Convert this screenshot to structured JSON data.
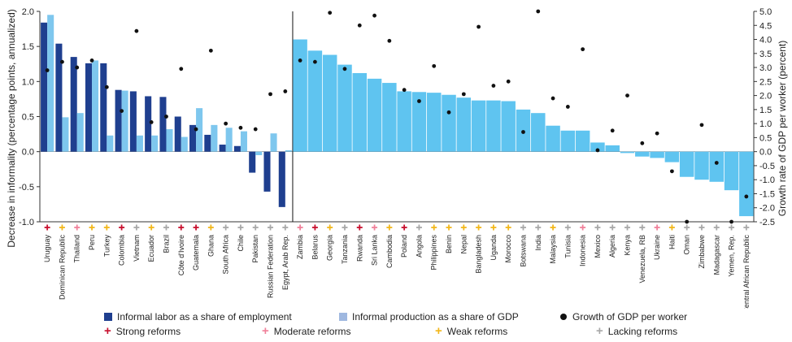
{
  "chart_data": {
    "type": "bar",
    "ylabel": "Decrease in informality (percentage points, annualized)",
    "y2label": "Growth rate of GDP per worker (percent)",
    "ylim": [
      -1.0,
      2.0
    ],
    "yticks": [
      "2.0",
      "1.5",
      "1.0",
      "0.5",
      "0.0",
      "-0.5",
      "-1.0"
    ],
    "y2lim": [
      -2.5,
      5.0
    ],
    "y2ticks": [
      "5.0",
      "4.5",
      "4.0",
      "3.5",
      "3.0",
      "2.5",
      "2.0",
      "1.5",
      "1.0",
      "0.5",
      "0.0",
      "-0.5",
      "-1.0",
      "-1.5",
      "-2.0",
      "-2.5"
    ],
    "group1": {
      "categories": [
        "Uruguay",
        "Dominican Republic",
        "Thailand",
        "Peru",
        "Turkey",
        "Colombia",
        "Vietnam",
        "Ecuador",
        "Brazil",
        "Côte d'Ivoire",
        "Guatemala",
        "Ghana",
        "South Africa",
        "Chile",
        "Pakistan",
        "Russian Federation",
        "Egypt, Arab Rep."
      ],
      "labor": [
        1.84,
        1.54,
        1.35,
        1.26,
        1.26,
        0.88,
        0.86,
        0.79,
        0.78,
        0.5,
        0.38,
        0.24,
        0.1,
        0.08,
        -0.3,
        -0.57,
        -0.79
      ],
      "production": [
        1.95,
        0.49,
        0.55,
        1.3,
        0.23,
        0.87,
        0.23,
        0.23,
        0.32,
        0.21,
        0.62,
        0.38,
        0.34,
        0.29,
        -0.05,
        0.26,
        0.02
      ],
      "growth": [
        2.9,
        3.2,
        3.0,
        3.25,
        2.3,
        1.45,
        4.3,
        1.05,
        1.25,
        2.95,
        0.8,
        3.6,
        1.0,
        0.85,
        0.8,
        2.05,
        2.15
      ],
      "reforms": [
        "strong",
        "weak",
        "moderate",
        "weak",
        "weak",
        "strong",
        "lacking",
        "weak",
        "lacking",
        "strong",
        "strong",
        "weak",
        "lacking",
        "lacking",
        "lacking",
        "lacking",
        "lacking"
      ]
    },
    "group2": {
      "categories": [
        "Zambia",
        "Belarus",
        "Georgia",
        "Tanzania",
        "Rwanda",
        "Sri Lanka",
        "Cambodia",
        "Poland",
        "Angola",
        "Philippines",
        "Benin",
        "Nepal",
        "Bangladesh",
        "Uganda",
        "Morocco",
        "Botswana",
        "India",
        "Malaysia",
        "Tunisia",
        "Indonesia",
        "Mexico",
        "Algeria",
        "Kenya",
        "Venezuela, RB",
        "Ukraine",
        "Haiti",
        "Oman",
        "Zimbabwe",
        "Madagascar",
        "Yemen, Rep.",
        "Central African Republic"
      ],
      "production": [
        1.6,
        1.44,
        1.38,
        1.24,
        1.12,
        1.04,
        0.98,
        0.86,
        0.85,
        0.84,
        0.81,
        0.77,
        0.73,
        0.73,
        0.72,
        0.6,
        0.55,
        0.37,
        0.3,
        0.3,
        0.13,
        0.09,
        -0.02,
        -0.07,
        -0.09,
        -0.15,
        -0.36,
        -0.4,
        -0.43,
        -0.55,
        -0.92
      ],
      "growth": [
        3.25,
        3.2,
        4.95,
        2.95,
        4.5,
        4.85,
        3.95,
        2.2,
        1.8,
        3.05,
        1.4,
        2.05,
        4.45,
        2.35,
        2.5,
        0.7,
        5.0,
        1.9,
        1.6,
        3.65,
        0.05,
        0.75,
        2.0,
        0.3,
        0.65,
        -0.7,
        -2.5,
        0.95,
        -0.4,
        -2.5,
        -1.6
      ],
      "reforms": [
        "moderate",
        "strong",
        "weak",
        "lacking",
        "strong",
        "moderate",
        "weak",
        "strong",
        "lacking",
        "weak",
        "weak",
        "weak",
        "weak",
        "weak",
        "weak",
        "lacking",
        "lacking",
        "weak",
        "lacking",
        "moderate",
        "lacking",
        "lacking",
        "lacking",
        "lacking",
        "moderate",
        "weak",
        "lacking",
        "lacking",
        "lacking",
        "lacking",
        "lacking"
      ]
    },
    "legend": [
      {
        "key": "labor",
        "label": "Informal labor as a share of employment",
        "color": "#1f3f8f"
      },
      {
        "key": "production",
        "label": "Informal production as a share of GDP",
        "color": "#7ec7ee"
      },
      {
        "key": "growth",
        "label": "Growth of GDP per worker",
        "color": "#111111"
      },
      {
        "key": "strong",
        "label": "Strong reforms",
        "color": "#c8102e"
      },
      {
        "key": "moderate",
        "label": "Moderate reforms",
        "color": "#f0809a"
      },
      {
        "key": "weak",
        "label": "Weak reforms",
        "color": "#f2b71b"
      },
      {
        "key": "lacking",
        "label": "Lacking reforms",
        "color": "#a8a8a8"
      }
    ],
    "colors": {
      "labor": "#1f3f8f",
      "production_group1": "#7ec7ee",
      "production_group2": "#5fc4f0",
      "legend_production_swatch": "#9fb8e0",
      "strong": "#c8102e",
      "moderate": "#f0809a",
      "weak": "#f2b71b",
      "lacking": "#a8a8a8"
    }
  }
}
